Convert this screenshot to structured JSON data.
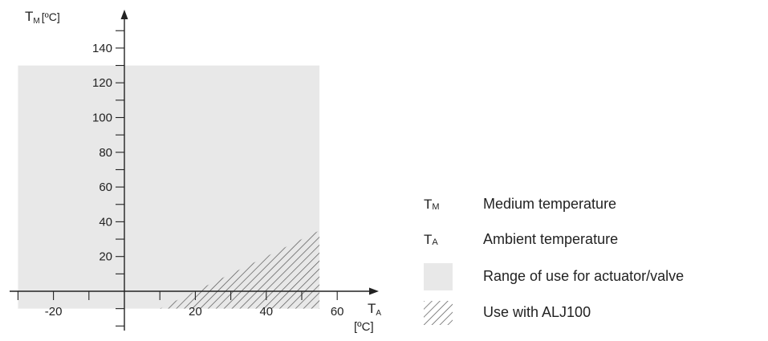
{
  "chart_data": {
    "type": "area",
    "title": "",
    "y_axis": {
      "symbol": "T",
      "subscript": "M",
      "unit": "[ºC]",
      "ylim": [
        -20,
        150
      ],
      "ticks": [
        140,
        120,
        100,
        80,
        60,
        40,
        20
      ],
      "minor_step": 10
    },
    "x_axis": {
      "symbol": "T",
      "subscript": "A",
      "unit": "[ºC]",
      "xlim": [
        -30,
        70
      ],
      "ticks": [
        -20,
        20,
        40,
        60
      ],
      "minor_step": 10
    },
    "regions": [
      {
        "name": "Range of use for actuator/valve",
        "style": "gray-fill",
        "color": "#e8e8e8",
        "polygon": [
          [
            -30,
            -10
          ],
          [
            55,
            -10
          ],
          [
            55,
            130
          ],
          [
            -30,
            130
          ]
        ]
      },
      {
        "name": "Use with ALJ100",
        "style": "hatch",
        "color": "#555555",
        "polygon": [
          [
            10,
            -10
          ],
          [
            55,
            -10
          ],
          [
            55,
            35
          ]
        ]
      }
    ]
  },
  "legend": {
    "items": [
      {
        "symbol": "T",
        "subscript": "M",
        "label": "Medium temperature"
      },
      {
        "symbol": "T",
        "subscript": "A",
        "label": "Ambient temperature"
      },
      {
        "swatch": "gray",
        "label": "Range of use for actuator/valve"
      },
      {
        "swatch": "hatch",
        "label": "Use with ALJ100"
      }
    ]
  }
}
